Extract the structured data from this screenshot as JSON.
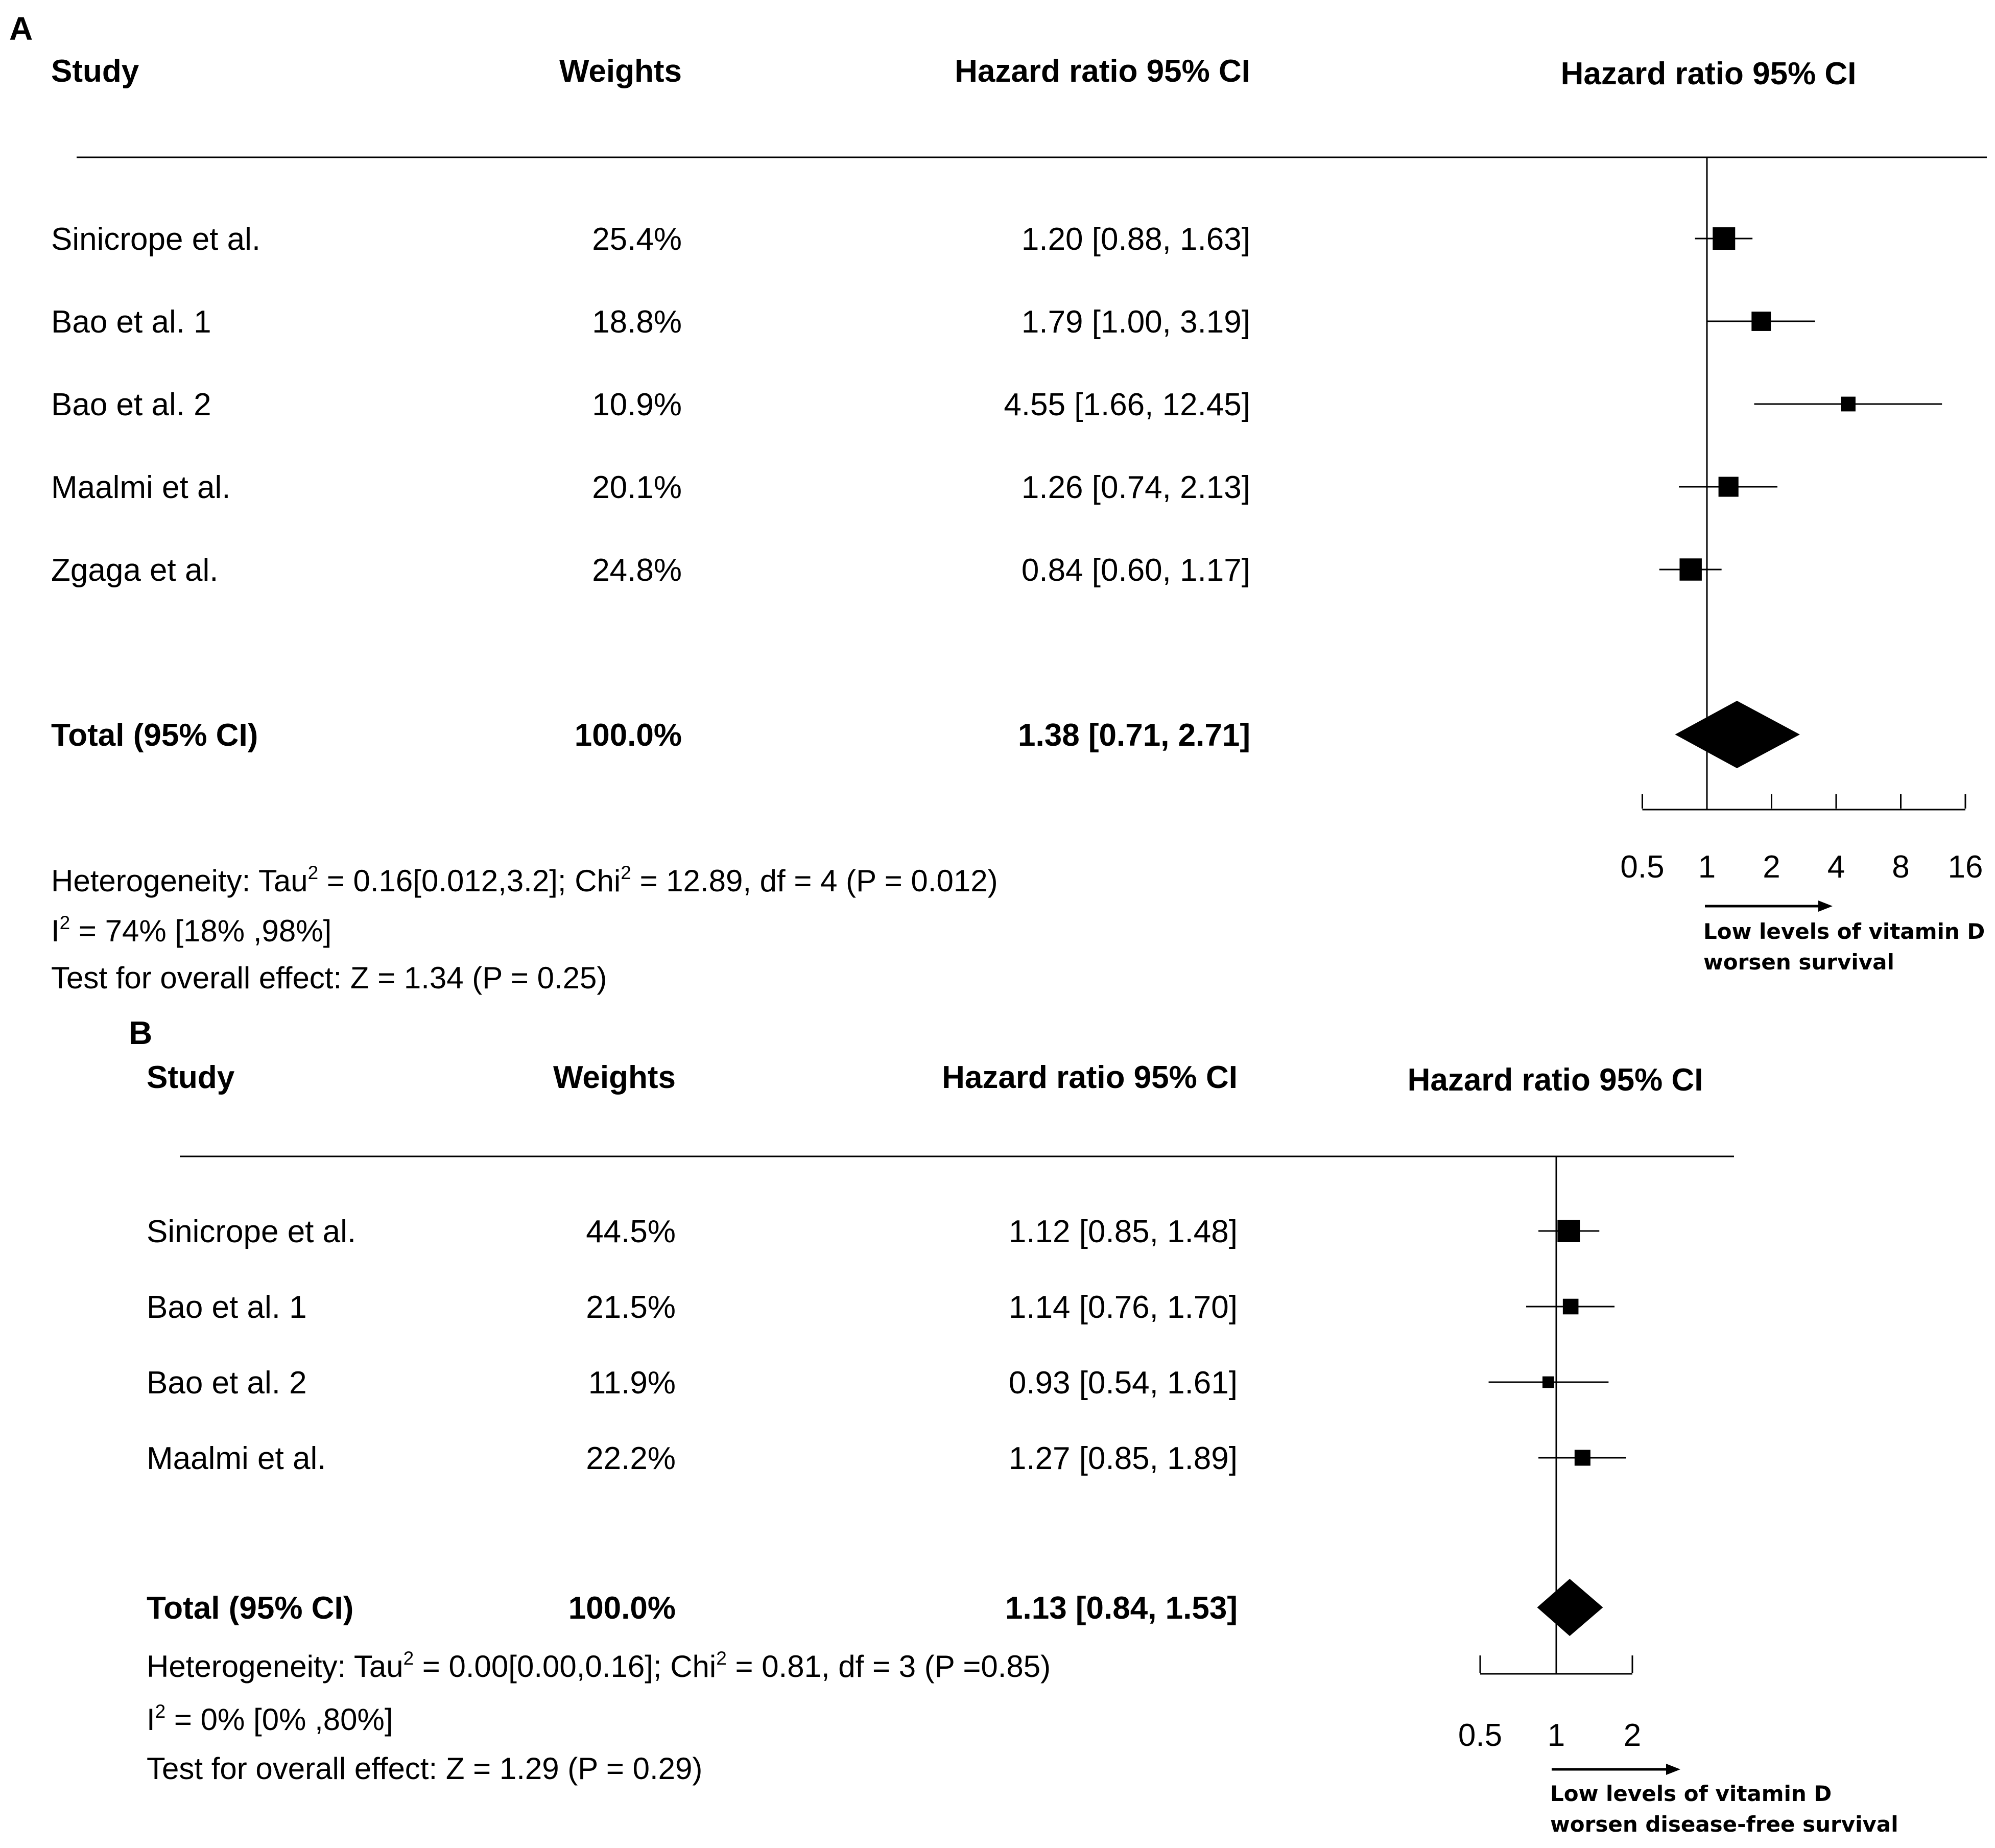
{
  "chart_data": [
    {
      "type": "forest",
      "panel_label": "A",
      "headers": {
        "study": "Study",
        "weights": "Weights",
        "ci_text": "Hazard ratio 95% CI",
        "plot": "Hazard ratio 95% CI"
      },
      "studies": [
        {
          "name": "Sinicrope et al.",
          "weight": "25.4%",
          "ci_text": "1.20 [0.88,  1.63]",
          "hr": 1.2,
          "lower": 0.88,
          "upper": 1.63,
          "weight_value": 25.4
        },
        {
          "name": "Bao et al. 1",
          "weight": "18.8%",
          "ci_text": "1.79 [1.00,  3.19]",
          "hr": 1.79,
          "lower": 1.0,
          "upper": 3.19,
          "weight_value": 18.8
        },
        {
          "name": "Bao et al. 2",
          "weight": "10.9%",
          "ci_text": "4.55 [1.66, 12.45]",
          "hr": 4.55,
          "lower": 1.66,
          "upper": 12.45,
          "weight_value": 10.9
        },
        {
          "name": "Maalmi et al.",
          "weight": "20.1%",
          "ci_text": "1.26 [0.74,  2.13]",
          "hr": 1.26,
          "lower": 0.74,
          "upper": 2.13,
          "weight_value": 20.1
        },
        {
          "name": "Zgaga et al.",
          "weight": "24.8%",
          "ci_text": "0.84 [0.60,  1.17]",
          "hr": 0.84,
          "lower": 0.6,
          "upper": 1.17,
          "weight_value": 24.8
        }
      ],
      "total": {
        "label": "Total (95% CI)",
        "weight": "100.0%",
        "ci_text": "1.38 [0.71,  2.71]",
        "hr": 1.38,
        "lower": 0.71,
        "upper": 2.71
      },
      "heterogeneity": {
        "line1_pre": "Heterogeneity: Tau",
        "line1_mid": " = 0.16[0.012,3.2]; Chi",
        "line1_post": " = 12.89, df = 4 (P = 0.012)",
        "sup": "2",
        "line2_pre": "I",
        "line2_post": " = 74% [18% ,98%]",
        "line3": "Test for overall effect: Z = 1.34 (P = 0.25)"
      },
      "axis": {
        "scale": "log2",
        "ticks": [
          0.5,
          1,
          2,
          4,
          8,
          16
        ],
        "tick_labels": [
          "0.5",
          "1",
          "2",
          "4",
          "8",
          "16"
        ],
        "xlim": [
          0.5,
          16
        ],
        "reference": 1
      },
      "arrow_note": [
        "Low levels of vitamin D",
        "worsen survival"
      ]
    },
    {
      "type": "forest",
      "panel_label": "B",
      "headers": {
        "study": "Study",
        "weights": "Weights",
        "ci_text": "Hazard ratio 95% CI",
        "plot": "Hazard ratio 95% CI"
      },
      "studies": [
        {
          "name": "Sinicrope et al.",
          "weight": "44.5%",
          "ci_text": "1.12 [0.85, 1.48]",
          "hr": 1.12,
          "lower": 0.85,
          "upper": 1.48,
          "weight_value": 44.5
        },
        {
          "name": "Bao et al. 1",
          "weight": "21.5%",
          "ci_text": "1.14 [0.76, 1.70]",
          "hr": 1.14,
          "lower": 0.76,
          "upper": 1.7,
          "weight_value": 21.5
        },
        {
          "name": "Bao et al. 2",
          "weight": "11.9%",
          "ci_text": "0.93 [0.54, 1.61]",
          "hr": 0.93,
          "lower": 0.54,
          "upper": 1.61,
          "weight_value": 11.9
        },
        {
          "name": "Maalmi et al.",
          "weight": "22.2%",
          "ci_text": "1.27 [0.85, 1.89]",
          "hr": 1.27,
          "lower": 0.85,
          "upper": 1.89,
          "weight_value": 22.2
        }
      ],
      "total": {
        "label": "Total (95% CI)",
        "weight": "100.0%",
        "ci_text": "1.13 [0.84,  1.53]",
        "hr": 1.13,
        "lower": 0.84,
        "upper": 1.53
      },
      "heterogeneity": {
        "line1_pre": "Heterogeneity: Tau",
        "line1_mid": " = 0.00[0.00,0.16]; Chi",
        "line1_post": " = 0.81, df = 3 (P =0.85)",
        "sup": "2",
        "line2_pre": "I",
        "line2_post": " = 0% [0% ,80%]",
        "line3": "Test for overall effect: Z = 1.29 (P = 0.29)"
      },
      "axis": {
        "scale": "log2",
        "ticks": [
          0.5,
          1,
          2
        ],
        "tick_labels": [
          "0.5",
          "1",
          "2"
        ],
        "xlim": [
          0.5,
          2
        ],
        "reference": 1
      },
      "arrow_note": [
        "Low levels of vitamin D",
        "worsen disease-free survival"
      ]
    }
  ]
}
